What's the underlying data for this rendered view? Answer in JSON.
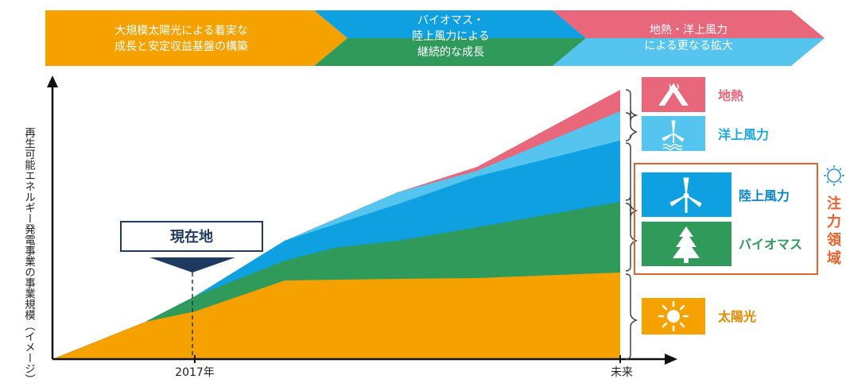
{
  "chart_data": {
    "type": "area",
    "ylabel": "再生可能エネルギー発電事業の事業規模（イメージ）",
    "x_ticks": [
      "2017年",
      "未来"
    ],
    "series": [
      {
        "name": "太陽光",
        "color": "#f5a100"
      },
      {
        "name": "バイオマス",
        "color": "#2f9a5a"
      },
      {
        "name": "陸上風力",
        "color": "#0ea0e0"
      },
      {
        "name": "洋上風力",
        "color": "#55c4ee"
      },
      {
        "name": "地熱",
        "color": "#e9677a"
      }
    ],
    "marker": {
      "label": "現在地",
      "at": "2017年"
    },
    "stages": [
      {
        "line1": "大規模太陽光による着実な",
        "line2": "成長と安定収益基盤の構築",
        "line3": "",
        "colors": [
          "#f5a100"
        ]
      },
      {
        "line1": "バイオマス・",
        "line2": "陸上風力による",
        "line3": "継続的な成長",
        "colors": [
          "#0ea0e0",
          "#2f9a5a"
        ]
      },
      {
        "line1": "地熱・洋上風力",
        "line2": "による更なる拡大",
        "line3": "",
        "colors": [
          "#e9677a",
          "#55c4ee"
        ]
      }
    ],
    "focus_area": {
      "label": "注力領域",
      "chars": [
        "注",
        "力",
        "領",
        "域"
      ],
      "color": "#e8622e",
      "items": [
        "陸上風力",
        "バイオマス"
      ]
    }
  },
  "legend": [
    {
      "label": "地熱",
      "icon": "geothermal-icon",
      "color": "#e9677a",
      "text_color": "#e9677a"
    },
    {
      "label": "洋上風力",
      "icon": "offshore-wind-icon",
      "color": "#55c4ee",
      "text_color": "#1aa7de"
    },
    {
      "label": "陸上風力",
      "icon": "onshore-wind-icon",
      "color": "#0ea0e0",
      "text_color": "#0a85c8"
    },
    {
      "label": "バイオマス",
      "icon": "biomass-icon",
      "color": "#2f9a5a",
      "text_color": "#2f9a5a"
    },
    {
      "label": "太陽光",
      "icon": "solar-icon",
      "color": "#f5a100",
      "text_color": "#e08a00"
    }
  ]
}
